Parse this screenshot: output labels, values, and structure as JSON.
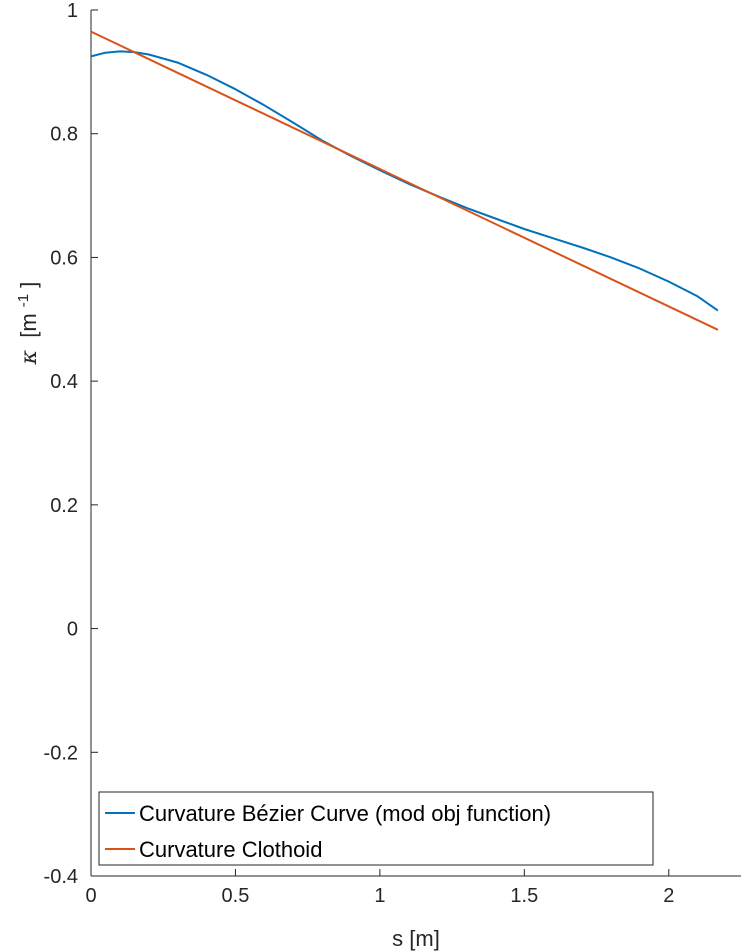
{
  "chart_data": {
    "type": "line",
    "xlabel": "s [m]",
    "ylabel": {
      "symbol": "κ",
      "unit_pre": "[m",
      "unit_sup": "-1",
      "unit_post": "]"
    },
    "xlim": [
      0,
      2.25
    ],
    "ylim": [
      -0.4,
      1
    ],
    "xticks": [
      0,
      0.5,
      1,
      1.5,
      2
    ],
    "xtick_labels": [
      "0",
      "0.5",
      "1",
      "1.5",
      "2"
    ],
    "yticks": [
      -0.4,
      -0.2,
      0,
      0.2,
      0.4,
      0.6,
      0.8,
      1
    ],
    "ytick_labels": [
      "-0.4",
      "-0.2",
      "0",
      "0.2",
      "0.4",
      "0.6",
      "0.8",
      "1"
    ],
    "grid": false,
    "legend_position": "bottom-left",
    "series": [
      {
        "name": "Curvature Bézier Curve (mod obj function)",
        "color": "#0072BD",
        "x": [
          0,
          0.05,
          0.1,
          0.15,
          0.2,
          0.3,
          0.4,
          0.5,
          0.6,
          0.7,
          0.8,
          0.9,
          1.0,
          1.1,
          1.2,
          1.3,
          1.4,
          1.5,
          1.6,
          1.7,
          1.8,
          1.9,
          2.0,
          2.1,
          2.17
        ],
        "y": [
          0.925,
          0.931,
          0.933,
          0.932,
          0.928,
          0.915,
          0.895,
          0.872,
          0.846,
          0.818,
          0.789,
          0.764,
          0.741,
          0.719,
          0.699,
          0.68,
          0.663,
          0.646,
          0.631,
          0.616,
          0.6,
          0.582,
          0.561,
          0.537,
          0.514
        ]
      },
      {
        "name": "Curvature Clothoid",
        "color": "#D95319",
        "x": [
          0,
          2.17
        ],
        "y": [
          0.965,
          0.483
        ]
      }
    ]
  }
}
